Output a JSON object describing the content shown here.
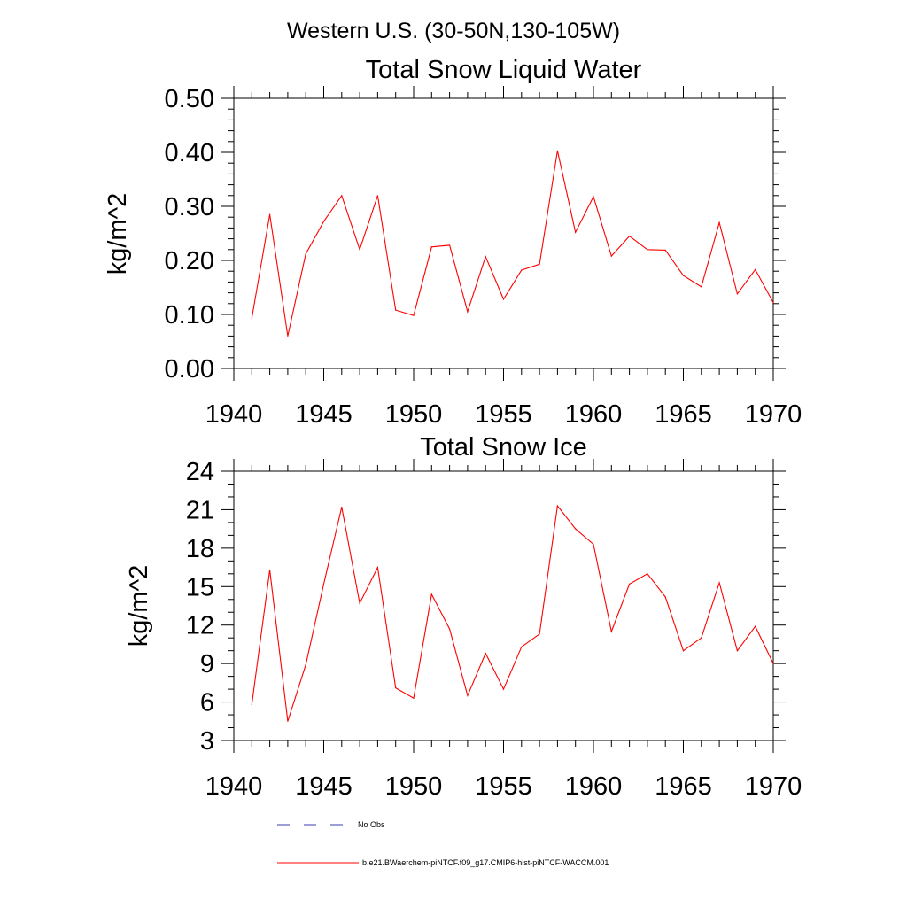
{
  "figure": {
    "title": "Western U.S. (30-50N,130-105W)"
  },
  "legend": {
    "entries": [
      {
        "label": "No Obs",
        "color": "#3b3bb0",
        "style": "dashed"
      },
      {
        "label": "b.e21.BWaerchem-piNTCF.f09_g17.CMIP6-hist-piNTCF-WACCM.001",
        "color": "#ff0000",
        "style": "solid"
      }
    ]
  },
  "chart_data": [
    {
      "type": "line",
      "title": "Total Snow Liquid Water",
      "xlabel": "",
      "ylabel": "kg/m^2",
      "xlim": [
        1940,
        1970
      ],
      "ylim": [
        0.0,
        0.5
      ],
      "xticks": [
        1940,
        1945,
        1950,
        1955,
        1960,
        1965,
        1970
      ],
      "yticks": [
        "0.00",
        "0.10",
        "0.20",
        "0.30",
        "0.40",
        "0.50"
      ],
      "series": [
        {
          "color": "#ff0000",
          "x": [
            1941,
            1942,
            1943,
            1944,
            1945,
            1946,
            1947,
            1948,
            1949,
            1950,
            1951,
            1952,
            1953,
            1954,
            1955,
            1956,
            1957,
            1958,
            1959,
            1960,
            1961,
            1962,
            1963,
            1964,
            1965,
            1966,
            1967,
            1968,
            1969,
            1970
          ],
          "y": [
            0.093,
            0.285,
            0.06,
            0.212,
            0.272,
            0.32,
            0.22,
            0.32,
            0.108,
            0.098,
            0.225,
            0.228,
            0.105,
            0.207,
            0.128,
            0.182,
            0.193,
            0.403,
            0.252,
            0.318,
            0.208,
            0.245,
            0.22,
            0.219,
            0.172,
            0.151,
            0.27,
            0.138,
            0.183,
            0.122
          ]
        }
      ]
    },
    {
      "type": "line",
      "title": "Total Snow Ice",
      "xlabel": "",
      "ylabel": "kg/m^2",
      "xlim": [
        1940,
        1970
      ],
      "ylim": [
        3,
        24
      ],
      "xticks": [
        1940,
        1945,
        1950,
        1955,
        1960,
        1965,
        1970
      ],
      "yticks": [
        "3",
        "6",
        "9",
        "12",
        "15",
        "18",
        "21",
        "24"
      ],
      "series": [
        {
          "color": "#ff0000",
          "x": [
            1941,
            1942,
            1943,
            1944,
            1945,
            1946,
            1947,
            1948,
            1949,
            1950,
            1951,
            1952,
            1953,
            1954,
            1955,
            1956,
            1957,
            1958,
            1959,
            1960,
            1961,
            1962,
            1963,
            1964,
            1965,
            1966,
            1967,
            1968,
            1969,
            1970
          ],
          "y": [
            5.8,
            16.3,
            4.5,
            8.9,
            15.2,
            21.2,
            13.7,
            16.5,
            7.1,
            6.3,
            14.4,
            11.7,
            6.5,
            9.8,
            7.0,
            10.3,
            11.3,
            21.3,
            19.5,
            18.3,
            11.5,
            15.2,
            16.0,
            14.2,
            10.0,
            11.0,
            15.3,
            10.0,
            11.9,
            9.0
          ]
        }
      ]
    }
  ]
}
